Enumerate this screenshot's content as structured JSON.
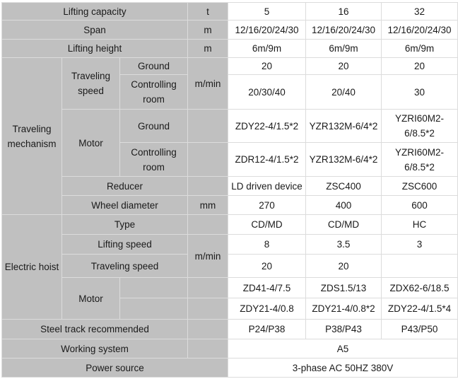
{
  "rows": {
    "lifting_capacity": {
      "label": "Lifting capacity",
      "unit": "t",
      "values": [
        "5",
        "16",
        "32"
      ]
    },
    "span": {
      "label": "Span",
      "unit": "m",
      "values": [
        "12/16/20/24/30",
        "12/16/20/24/30",
        "12/16/20/24/30"
      ]
    },
    "lifting_height": {
      "label": "Lifting height",
      "unit": "m",
      "values": [
        "6m/9m",
        "6m/9m",
        "6m/9m"
      ]
    },
    "traveling_mechanism": {
      "label": "Traveling mechanism",
      "traveling_speed": {
        "label": "Traveling speed",
        "unit": "m/min",
        "ground": {
          "label": "Ground",
          "values": [
            "20",
            "20",
            "20"
          ]
        },
        "controlling_room": {
          "label": "Controlling room",
          "values": [
            "20/30/40",
            "20/40",
            "30"
          ]
        }
      },
      "motor": {
        "label": "Motor",
        "ground": {
          "label": "Ground",
          "values": [
            "ZDY22-4/1.5*2",
            "YZR132M-6/4*2",
            "YZRI60M2-6/8.5*2"
          ]
        },
        "controlling_room": {
          "label": "Controlling room",
          "values": [
            "ZDR12-4/1.5*2",
            "YZR132M-6/4*2",
            "YZRI60M2-6/8.5*2"
          ]
        }
      },
      "reducer": {
        "label": "Reducer",
        "values": [
          "LD driven device",
          "ZSC400",
          "ZSC600"
        ]
      },
      "wheel_diameter": {
        "label": "Wheel diameter",
        "unit": "mm",
        "values": [
          "270",
          "400",
          "600"
        ]
      }
    },
    "electric_hoist": {
      "label": "Electric hoist",
      "type": {
        "label": "Type",
        "values": [
          "CD/MD",
          "CD/MD",
          "HC"
        ]
      },
      "speed_unit": "m/min",
      "lifting_speed": {
        "label": "Lifting speed",
        "values": [
          "8",
          "3.5",
          "3"
        ]
      },
      "traveling_speed": {
        "label": "Traveling speed",
        "values": [
          "20",
          "20",
          ""
        ]
      },
      "motor": {
        "label": "Motor",
        "row1": [
          "ZD41-4/7.5",
          "ZDS1.5/13",
          "ZDX62-6/18.5"
        ],
        "row2": [
          "ZDY21-4/0.8",
          "ZDY21-4/0.8*2",
          "ZDY22-4/1.5*4"
        ]
      }
    },
    "steel_track": {
      "label": "Steel track recommended",
      "values": [
        "P24/P38",
        "P38/P43",
        "P43/P50"
      ]
    },
    "working_system": {
      "label": "Working system",
      "value": "A5"
    },
    "power_source": {
      "label": "Power source",
      "value": "3-phase AC 50HZ 380V"
    }
  }
}
